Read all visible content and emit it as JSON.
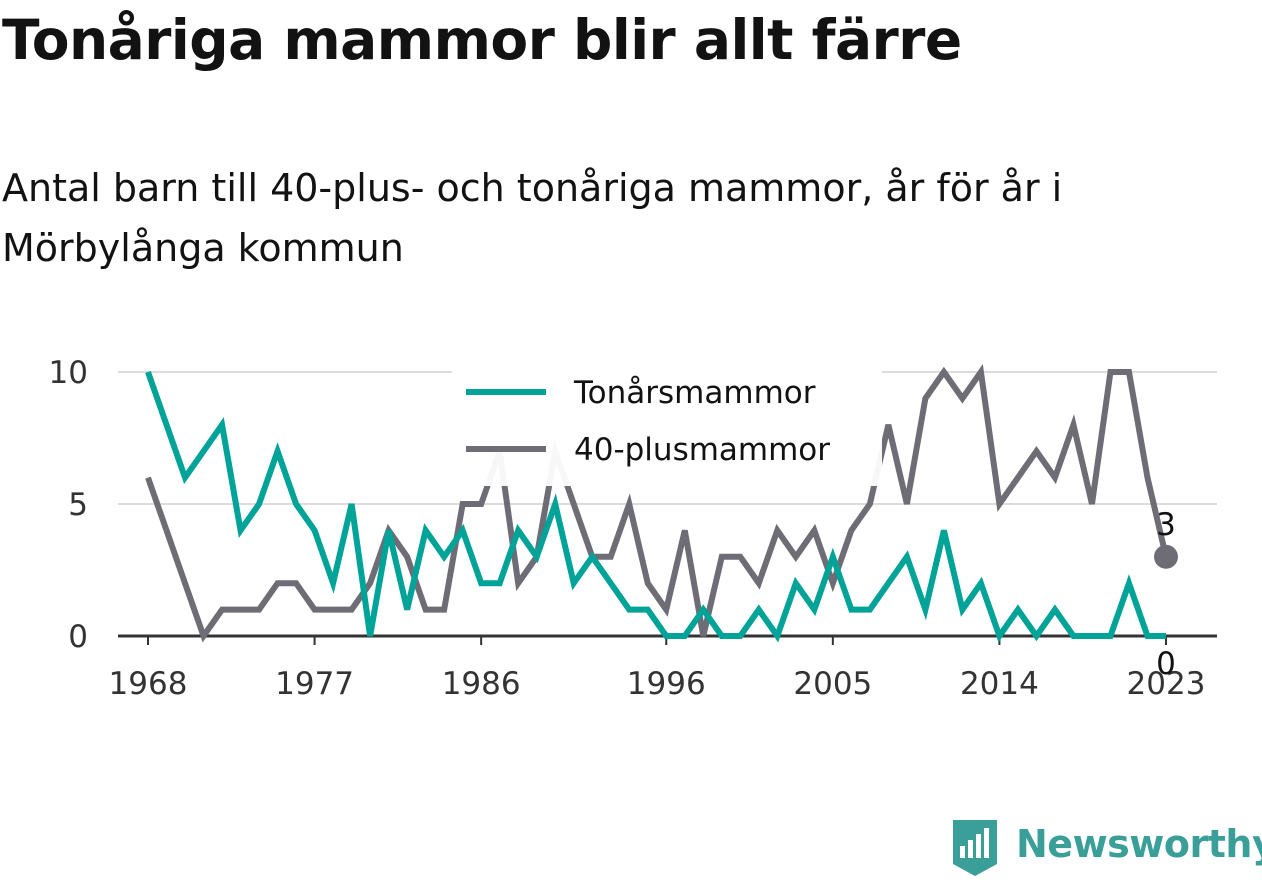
{
  "title": "Tonåriga mammor blir allt färre",
  "subtitle": "Antal barn till 40-plus- och tonåriga mammor, år för år i Mörbylånga kommun",
  "brand": {
    "name": "Newsworthy",
    "icon": "newsworthy-logo-icon",
    "color": "#3a9e99"
  },
  "chart_data": {
    "type": "line",
    "x": [
      1968,
      1969,
      1970,
      1971,
      1972,
      1973,
      1974,
      1975,
      1976,
      1977,
      1978,
      1979,
      1980,
      1981,
      1982,
      1983,
      1984,
      1985,
      1986,
      1987,
      1988,
      1989,
      1990,
      1991,
      1992,
      1993,
      1994,
      1995,
      1996,
      1997,
      1998,
      1999,
      2000,
      2001,
      2002,
      2003,
      2004,
      2005,
      2006,
      2007,
      2008,
      2009,
      2010,
      2011,
      2012,
      2013,
      2014,
      2015,
      2016,
      2017,
      2018,
      2019,
      2020,
      2021,
      2022,
      2023
    ],
    "xticks": [
      1968,
      1977,
      1986,
      1996,
      2005,
      2014,
      2023
    ],
    "xtick_labels": [
      "1968",
      "1977",
      "1986",
      "1996",
      "2005",
      "2014",
      "2023"
    ],
    "yticks": [
      0,
      5,
      10
    ],
    "ylim": [
      0,
      10
    ],
    "xlim": [
      1968,
      2026
    ],
    "grid": true,
    "legend_position": "top-center",
    "series": [
      {
        "name": "Tonårsmammor",
        "color": "#00a398",
        "values": [
          10,
          8,
          6,
          7,
          8,
          4,
          5,
          7,
          5,
          4,
          2,
          5,
          0,
          4,
          1,
          4,
          3,
          4,
          2,
          2,
          4,
          3,
          5,
          2,
          3,
          2,
          1,
          1,
          0,
          0,
          1,
          0,
          0,
          1,
          0,
          2,
          1,
          3,
          1,
          1,
          2,
          3,
          1,
          4,
          1,
          2,
          0,
          1,
          0,
          1,
          0,
          0,
          0,
          2,
          0,
          0
        ],
        "end_label": "0"
      },
      {
        "name": "40-plusmammor",
        "color": "#6e6d75",
        "values": [
          6,
          4,
          2,
          0,
          1,
          1,
          1,
          2,
          2,
          1,
          1,
          1,
          2,
          4,
          3,
          1,
          1,
          5,
          5,
          7,
          2,
          3,
          7,
          5,
          3,
          3,
          5,
          2,
          1,
          4,
          0,
          3,
          3,
          2,
          4,
          3,
          4,
          2,
          4,
          5,
          8,
          5,
          9,
          10,
          9,
          10,
          5,
          6,
          7,
          6,
          8,
          5,
          10,
          10,
          6,
          3
        ],
        "end_label": "3"
      }
    ]
  }
}
